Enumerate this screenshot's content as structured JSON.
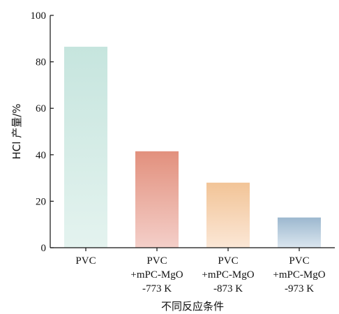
{
  "chart_data": {
    "type": "bar",
    "title": "",
    "xlabel": "不同反应条件",
    "ylabel": "HCl 产量/%",
    "ylim": [
      0,
      100
    ],
    "yticks": [
      0,
      20,
      40,
      60,
      80,
      100
    ],
    "grid": false,
    "categories": [
      [
        "PVC"
      ],
      [
        "PVC",
        "+mPC-MgO",
        "-773 K"
      ],
      [
        "PVC",
        "+mPC-MgO",
        "-873 K"
      ],
      [
        "PVC",
        "+mPC-MgO",
        "-973 K"
      ]
    ],
    "values": [
      86.5,
      41.5,
      28.0,
      13.0
    ],
    "colors": [
      [
        "#c6e5de",
        "#e4f3ef"
      ],
      [
        "#e2907d",
        "#f4cfc9"
      ],
      [
        "#f2c497",
        "#fbe7d6"
      ],
      [
        "#9cb8cf",
        "#dbe6ef"
      ]
    ]
  }
}
